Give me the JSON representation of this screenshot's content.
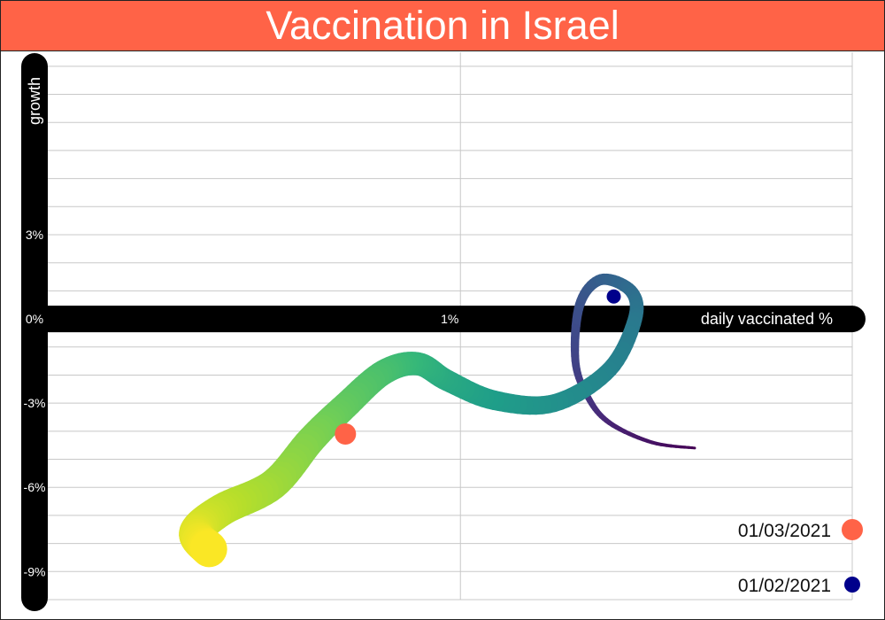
{
  "title": "Vaccination in Israel",
  "colors": {
    "title_background": "#ff6347",
    "axis_bar": "#000000",
    "grid": "#c8c8c8",
    "marker_recent": "#ff6347",
    "marker_earlier": "#00008b",
    "trail_palette": "viridis"
  },
  "chart_data": {
    "type": "line",
    "title": "Vaccination in Israel",
    "xlabel": "daily vaccinated %",
    "ylabel": "growth",
    "x_ticks": [
      "0%",
      "1%"
    ],
    "y_ticks": [
      "3%",
      "0%",
      "-3%",
      "-6%",
      "-9%"
    ],
    "xlim": [
      0,
      1.92
    ],
    "ylim": [
      -10,
      9.5
    ],
    "grid": true,
    "legend_placement": "bottom-right",
    "series": [
      {
        "points": [
          {
            "x": 1.55,
            "y": -4.6
          },
          {
            "x": 1.45,
            "y": -4.4
          },
          {
            "x": 1.35,
            "y": -3.7
          },
          {
            "x": 1.3,
            "y": -2.8
          },
          {
            "x": 1.27,
            "y": -1.5
          },
          {
            "x": 1.28,
            "y": 0.5
          },
          {
            "x": 1.33,
            "y": 1.4
          },
          {
            "x": 1.4,
            "y": 1.0
          },
          {
            "x": 1.41,
            "y": 0.0
          },
          {
            "x": 1.35,
            "y": -1.8
          },
          {
            "x": 1.22,
            "y": -3.0
          },
          {
            "x": 1.08,
            "y": -2.9
          },
          {
            "x": 0.97,
            "y": -2.2
          },
          {
            "x": 0.9,
            "y": -1.6
          },
          {
            "x": 0.82,
            "y": -1.9
          },
          {
            "x": 0.73,
            "y": -3.1
          },
          {
            "x": 0.65,
            "y": -4.3
          },
          {
            "x": 0.56,
            "y": -5.9
          },
          {
            "x": 0.44,
            "y": -6.8
          },
          {
            "x": 0.38,
            "y": -7.6
          },
          {
            "x": 0.41,
            "y": -8.2
          }
        ]
      }
    ],
    "markers": [
      {
        "label": "01/03/2021",
        "x": 0.73,
        "y": -4.1,
        "color": "#ff6347"
      },
      {
        "label": "01/02/2021",
        "x": 1.36,
        "y": 0.8,
        "color": "#00008b"
      }
    ]
  }
}
